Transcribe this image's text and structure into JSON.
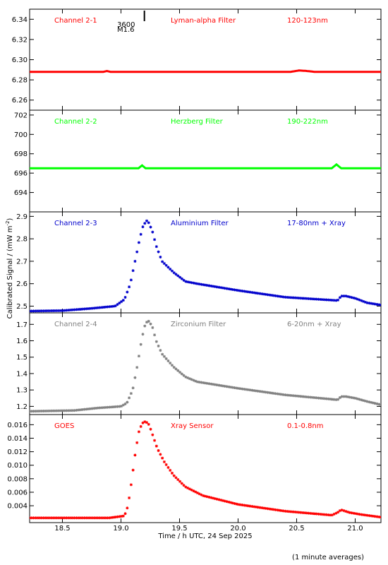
{
  "figure": {
    "ylabel": "Calibrated Signal / (mW m",
    "ylabel_sup": "-2",
    "ylabel_end": ")",
    "xlabel": "Time / h UTC, 24 Sep 2025",
    "footnote": "(1 minute averages)",
    "annotation_top": "3600",
    "annotation_class": "M1.6",
    "flare_marker_x": 19.2
  },
  "chart_data": [
    {
      "type": "line",
      "labels": [
        "Channel 2-1",
        "Lyman-alpha Filter",
        "120-123nm"
      ],
      "color": "#ff0000",
      "xlim": [
        18.22,
        21.22
      ],
      "ylim": [
        6.25,
        6.35
      ],
      "yticks": [
        6.26,
        6.28,
        6.3,
        6.32,
        6.34
      ],
      "ytick_labels": [
        "6.26",
        "6.28",
        "6.30",
        "6.32",
        "6.34"
      ],
      "x": [
        18.22,
        18.85,
        18.88,
        18.91,
        19.2,
        20.45,
        20.52,
        20.58,
        20.65,
        21.22
      ],
      "y": [
        6.288,
        6.288,
        6.2888,
        6.288,
        6.288,
        6.288,
        6.2893,
        6.2889,
        6.288,
        6.288
      ]
    },
    {
      "type": "line",
      "labels": [
        "Channel 2-2",
        "Herzberg Filter",
        "190-222nm"
      ],
      "color": "#00ff00",
      "xlim": [
        18.22,
        21.22
      ],
      "ylim": [
        692,
        702.5
      ],
      "yticks": [
        694,
        696,
        698,
        700,
        702
      ],
      "ytick_labels": [
        "694",
        "696",
        "698",
        "700",
        "702"
      ],
      "x": [
        18.22,
        19.15,
        19.18,
        19.21,
        19.6,
        20.8,
        20.84,
        20.88,
        21.22
      ],
      "y": [
        696.5,
        696.5,
        696.8,
        696.5,
        696.5,
        696.5,
        696.9,
        696.5,
        696.5
      ]
    },
    {
      "type": "scatter-line",
      "labels": [
        "Channel 2-3",
        "Aluminium Filter",
        "17-80nm + Xray"
      ],
      "color": "#0000cc",
      "xlim": [
        18.22,
        21.22
      ],
      "ylim": [
        2.47,
        2.92
      ],
      "yticks": [
        2.5,
        2.6,
        2.7,
        2.8,
        2.9
      ],
      "ytick_labels": [
        "2.5",
        "2.6",
        "2.7",
        "2.8",
        "2.9"
      ],
      "x": [
        18.22,
        18.5,
        18.75,
        18.95,
        19.03,
        19.08,
        19.12,
        19.16,
        19.19,
        19.22,
        19.24,
        19.27,
        19.3,
        19.35,
        19.45,
        19.55,
        19.65,
        20.0,
        20.4,
        20.85,
        20.88,
        20.92,
        21.0,
        21.1,
        21.22
      ],
      "y": [
        2.478,
        2.48,
        2.49,
        2.5,
        2.53,
        2.6,
        2.7,
        2.8,
        2.86,
        2.88,
        2.87,
        2.83,
        2.77,
        2.7,
        2.65,
        2.61,
        2.6,
        2.57,
        2.54,
        2.525,
        2.545,
        2.545,
        2.535,
        2.515,
        2.505
      ]
    },
    {
      "type": "scatter-line",
      "labels": [
        "Channel 2-4",
        "Zirconium Filter",
        "6-20nm + Xray"
      ],
      "color": "#808080",
      "xlim": [
        18.22,
        21.22
      ],
      "ylim": [
        1.15,
        1.77
      ],
      "yticks": [
        1.2,
        1.3,
        1.4,
        1.5,
        1.6,
        1.7
      ],
      "ytick_labels": [
        "1.2",
        "1.3",
        "1.4",
        "1.5",
        "1.6",
        "1.7"
      ],
      "x": [
        18.22,
        18.6,
        18.8,
        19.0,
        19.05,
        19.1,
        19.14,
        19.18,
        19.21,
        19.24,
        19.27,
        19.3,
        19.35,
        19.45,
        19.55,
        19.65,
        20.0,
        20.4,
        20.85,
        20.88,
        20.92,
        21.0,
        21.1,
        21.22
      ],
      "y": [
        1.17,
        1.175,
        1.19,
        1.2,
        1.22,
        1.3,
        1.45,
        1.62,
        1.71,
        1.72,
        1.68,
        1.6,
        1.52,
        1.44,
        1.38,
        1.35,
        1.31,
        1.27,
        1.24,
        1.26,
        1.26,
        1.25,
        1.23,
        1.21
      ]
    },
    {
      "type": "scatter-line",
      "labels": [
        "GOES",
        "Xray Sensor",
        "0.1-0.8nm"
      ],
      "color": "#ff0000",
      "xlim": [
        18.22,
        21.22
      ],
      "ylim": [
        0.0015,
        0.0175
      ],
      "yticks": [
        0.004,
        0.006,
        0.008,
        0.01,
        0.012,
        0.014,
        0.016
      ],
      "ytick_labels": [
        "0.004",
        "0.006",
        "0.008",
        "0.010",
        "0.012",
        "0.014",
        "0.016"
      ],
      "xticks": [
        18.5,
        19.0,
        19.5,
        20.0,
        20.5,
        21.0
      ],
      "xtick_labels": [
        "18.5",
        "19.0",
        "19.5",
        "20.0",
        "20.5",
        "21.0"
      ],
      "x": [
        18.22,
        18.6,
        18.9,
        19.03,
        19.06,
        19.09,
        19.12,
        19.15,
        19.18,
        19.21,
        19.24,
        19.27,
        19.31,
        19.37,
        19.45,
        19.55,
        19.7,
        20.0,
        20.4,
        20.8,
        20.85,
        20.88,
        20.95,
        21.05,
        21.22
      ],
      "y": [
        0.0022,
        0.0022,
        0.0022,
        0.0025,
        0.004,
        0.0075,
        0.0115,
        0.0148,
        0.0162,
        0.0165,
        0.016,
        0.0145,
        0.0125,
        0.0105,
        0.0085,
        0.0068,
        0.0055,
        0.0042,
        0.0032,
        0.0026,
        0.003,
        0.0034,
        0.003,
        0.0027,
        0.0023
      ]
    }
  ]
}
